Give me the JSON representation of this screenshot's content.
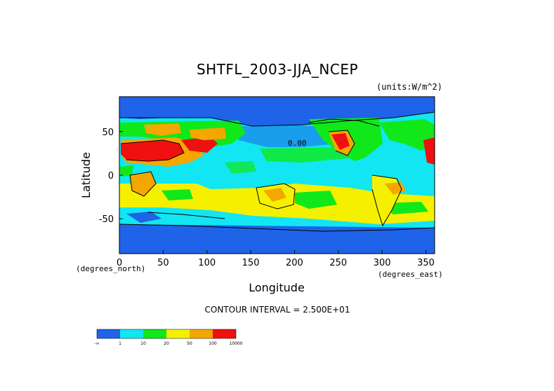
{
  "chart_data": {
    "type": "heatmap",
    "title": "SHTFL_2003-JJA_NCEP",
    "units": "(units:W/m^2)",
    "xlabel": "Longitude",
    "ylabel": "Latitude",
    "x_unit_note": "(degrees_east)",
    "y_unit_note": "(degrees_north)",
    "xlim": [
      0,
      360
    ],
    "ylim": [
      -90,
      90
    ],
    "x_ticks": [
      "0",
      "50",
      "100",
      "150",
      "200",
      "250",
      "300",
      "350"
    ],
    "y_ticks": [
      "50",
      "0",
      "-50"
    ],
    "x_tick_values": [
      0,
      50,
      100,
      150,
      200,
      250,
      300,
      350
    ],
    "y_tick_values": [
      50,
      0,
      -50
    ],
    "contour_interval": "CONTOUR INTERVAL = 2.500E+01",
    "contour_label": "0.00",
    "colorbar": {
      "levels": [
        "-∞",
        "1",
        "10",
        "20",
        "50",
        "100",
        "10000"
      ],
      "colors": [
        "#1f63e8",
        "#11e6f2",
        "#10e81a",
        "#f4f000",
        "#f4a700",
        "#ef1010"
      ]
    },
    "regions": [
      {
        "name": "global ocean background",
        "value_bin": "1-10",
        "color": "#11e6f2"
      },
      {
        "name": "high latitude oceans and Antarctica",
        "value_bin": "below 1",
        "color": "#1f63e8"
      },
      {
        "name": "subtropical southern oceans",
        "value_bin": "20-50",
        "color": "#f4f000"
      },
      {
        "name": "Sahara and Arabia",
        "value_bin": "above 100",
        "color": "#ef1010"
      },
      {
        "name": "western North America",
        "value_bin": "above 100",
        "color": "#ef1010"
      },
      {
        "name": "southern Africa",
        "value_bin": "50-100",
        "color": "#f4a700"
      },
      {
        "name": "Australia",
        "value_bin": "20-50",
        "color": "#f4f000"
      }
    ]
  }
}
